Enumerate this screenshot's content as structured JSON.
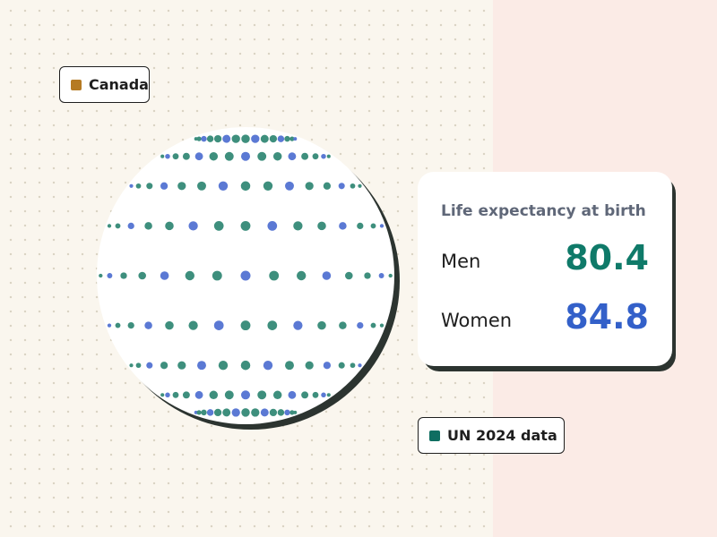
{
  "country": {
    "label": "Canada",
    "swatch_color": "#b57a22"
  },
  "source": {
    "label": "UN 2024 data",
    "swatch_color": "#0f6e61"
  },
  "card": {
    "title": "Life expectancy at birth",
    "men_label": "Men",
    "men_value": "80.4",
    "women_label": "Women",
    "women_value": "84.8"
  },
  "colors": {
    "men": "#0f7a69",
    "women": "#3360c9",
    "dot_teal": "#3e8f7d",
    "dot_blue": "#5b79d4"
  }
}
